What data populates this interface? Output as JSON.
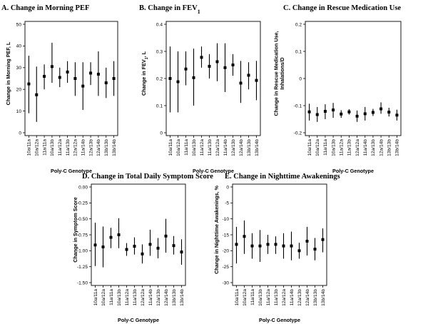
{
  "chart_data": [
    {
      "type": "scatter",
      "variant": "point-with-interval",
      "title": "A. Change in Morning PEF",
      "ylabel": "Change in Morning PEF, L",
      "xlabel": "Poly-C Genotype",
      "ylim": [
        0,
        50
      ],
      "yticks": [
        0,
        10,
        20,
        30,
        40,
        50
      ],
      "ytick_labels": [
        "0",
        "10",
        "20",
        "30",
        "40",
        "50"
      ],
      "categories": [
        "10a/11a",
        "10a/12a",
        "11a/11a",
        "10a/13b",
        "11a/12a",
        "11a/13b",
        "12a/12a",
        "11a/14b",
        "12a/13b",
        "12a/14b",
        "13b/13b",
        "13b/14b"
      ],
      "values": [
        22.5,
        17.5,
        26.0,
        30.5,
        25.5,
        28.0,
        25.0,
        21.5,
        27.5,
        27.0,
        23.0,
        25.0
      ],
      "lower": [
        9.0,
        5.0,
        20.0,
        23.0,
        21.0,
        23.0,
        17.0,
        10.5,
        22.0,
        17.0,
        16.0,
        17.0
      ],
      "upper": [
        35.5,
        30.5,
        31.5,
        41.5,
        30.0,
        33.0,
        32.5,
        32.5,
        32.5,
        37.5,
        30.0,
        33.0
      ]
    },
    {
      "type": "scatter",
      "variant": "point-with-interval",
      "title": "B. Change in FEV",
      "title_subscript": "1",
      "ylabel": "Change in FEV",
      "ylabel_subscript": "1",
      "ylabel_suffix": ", L",
      "xlabel": "Poly-C Genotype",
      "ylim": [
        0,
        0.4
      ],
      "yticks": [
        0,
        0.1,
        0.2,
        0.3,
        0.4
      ],
      "ytick_labels": [
        "0",
        "0.1",
        "0.2",
        "0.3",
        "0.4"
      ],
      "categories": [
        "10a/11a",
        "10a/12a",
        "11a/11a",
        "10a/13b",
        "11a/12a",
        "11a/13b",
        "12a/12a",
        "11a/14b",
        "12a/13b",
        "12a/14b",
        "13b/13b",
        "13b/14b"
      ],
      "values": [
        0.2,
        0.188,
        0.235,
        0.203,
        0.278,
        0.245,
        0.262,
        0.24,
        0.25,
        0.183,
        0.212,
        0.193
      ],
      "lower": [
        0.075,
        0.075,
        0.175,
        0.1,
        0.24,
        0.2,
        0.19,
        0.15,
        0.21,
        0.11,
        0.16,
        0.12
      ],
      "upper": [
        0.318,
        0.3,
        0.3,
        0.31,
        0.318,
        0.29,
        0.33,
        0.33,
        0.29,
        0.265,
        0.26,
        0.265
      ]
    },
    {
      "type": "scatter",
      "variant": "point-with-interval",
      "title": "C. Change in Rescue Medication Use",
      "ylabel": "Change in Rescue Medication Use,",
      "ylabel_line2": "Inhalations/D",
      "xlabel": "Poly-C Genotype",
      "ylim": [
        -0.2,
        0.2
      ],
      "yticks": [
        -0.2,
        -0.1,
        0,
        0.1,
        0.2
      ],
      "ytick_labels": [
        "-0.2",
        "-0.1",
        "0",
        "0.1",
        "0.2"
      ],
      "categories": [
        "10a/11a",
        "10a/12a",
        "11a/11a",
        "10a/13b",
        "11a/12a",
        "11a/13b",
        "12a/12a",
        "11a/14b",
        "12a/13b",
        "12a/14b",
        "13b/13b",
        "13b/14b"
      ],
      "values": [
        -0.123,
        -0.133,
        -0.121,
        -0.116,
        -0.131,
        -0.123,
        -0.139,
        -0.13,
        -0.125,
        -0.112,
        -0.124,
        -0.135
      ],
      "lower": [
        -0.155,
        -0.16,
        -0.15,
        -0.145,
        -0.145,
        -0.133,
        -0.16,
        -0.155,
        -0.138,
        -0.13,
        -0.14,
        -0.155
      ],
      "upper": [
        -0.093,
        -0.105,
        -0.095,
        -0.09,
        -0.117,
        -0.113,
        -0.118,
        -0.105,
        -0.112,
        -0.088,
        -0.108,
        -0.115
      ]
    },
    {
      "type": "scatter",
      "variant": "point-with-interval",
      "title": "D. Change in Total Daily Symptom Score",
      "ylabel": "Change in Symptom Score",
      "xlabel": "Poly-C Genotype",
      "ylim": [
        -1.5,
        0
      ],
      "yticks": [
        0,
        -0.25,
        -0.5,
        -0.75,
        -1.0,
        -1.25,
        -1.5
      ],
      "ytick_labels": [
        "0.00",
        "-0.25",
        "-0.50",
        "-0.75",
        "-1.00",
        "-1.25",
        "-1.50"
      ],
      "categories": [
        "10a/11a",
        "10a/12a",
        "11a/11a",
        "10a/13b",
        "11a/12a",
        "11a/13b",
        "12a/12a",
        "11a/14b",
        "12a/13b",
        "12a/14b",
        "13b/13b",
        "13b/14b"
      ],
      "values": [
        -0.91,
        -0.94,
        -0.79,
        -0.75,
        -0.98,
        -0.93,
        -1.05,
        -0.9,
        -0.96,
        -0.77,
        -0.92,
        -1.02
      ],
      "lower": [
        -1.24,
        -1.26,
        -0.96,
        -0.96,
        -1.08,
        -1.06,
        -1.2,
        -1.08,
        -1.12,
        -1.03,
        -1.06,
        -1.22
      ],
      "upper": [
        -0.56,
        -0.62,
        -0.64,
        -0.49,
        -0.88,
        -0.79,
        -0.9,
        -0.67,
        -0.8,
        -0.5,
        -0.77,
        -0.82
      ]
    },
    {
      "type": "scatter",
      "variant": "point-with-interval",
      "title": "E. Change in Nighttime Awakenings",
      "ylabel": "Change in Nighttime Awakenings, %",
      "xlabel": "Poly-C Genotype",
      "ylim": [
        -30,
        0
      ],
      "yticks": [
        0,
        -5,
        -10,
        -15,
        -20,
        -25,
        -30
      ],
      "ytick_labels": [
        "0",
        "-5",
        "-10",
        "-15",
        "-20",
        "-25",
        "-30"
      ],
      "categories": [
        "10a/11a",
        "10a/12a",
        "11a/11a",
        "10a/13b",
        "11a/12a",
        "11a/13b",
        "12a/12a",
        "11a/14b",
        "12a/13b",
        "12a/14b",
        "13b/13b",
        "13b/14b"
      ],
      "values": [
        -18.0,
        -15.5,
        -18.5,
        -18.5,
        -18.0,
        -18.0,
        -18.5,
        -18.5,
        -20.0,
        -17.0,
        -19.5,
        -16.5
      ],
      "lower": [
        -24.0,
        -21.0,
        -22.5,
        -23.5,
        -21.0,
        -21.0,
        -22.5,
        -23.0,
        -22.5,
        -21.5,
        -23.0,
        -20.5
      ],
      "upper": [
        -12.5,
        -10.5,
        -14.5,
        -13.5,
        -15.0,
        -15.5,
        -14.5,
        -14.0,
        -17.5,
        -12.5,
        -16.0,
        -13.0
      ]
    }
  ]
}
